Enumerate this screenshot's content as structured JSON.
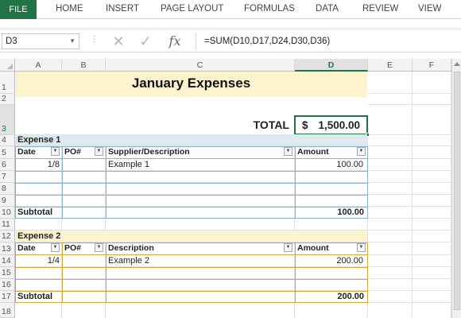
{
  "ribbon": {
    "file_label": "FILE",
    "tabs": [
      "HOME",
      "INSERT",
      "PAGE LAYOUT",
      "FORMULAS",
      "DATA",
      "REVIEW",
      "VIEW"
    ]
  },
  "formula_bar": {
    "name_box": "D3",
    "fx_label": "fx",
    "formula": "=SUM(D10,D17,D24,D30,D36)"
  },
  "columns": [
    "A",
    "B",
    "C",
    "D",
    "E",
    "F"
  ],
  "active_column": "D",
  "rows": [
    "1",
    "2",
    "3",
    "4",
    "5",
    "6",
    "7",
    "8",
    "9",
    "10",
    "11",
    "12",
    "13",
    "14",
    "15",
    "16",
    "17",
    "18"
  ],
  "active_row": "3",
  "sheet": {
    "title": "January Expenses",
    "total_label": "TOTAL",
    "total_currency": "$",
    "total_value": "1,500.00",
    "expense1": {
      "title": "Expense 1",
      "headers": [
        "Date",
        "PO#",
        "Supplier/Description",
        "Amount"
      ],
      "row": {
        "date": "1/8",
        "po": "",
        "desc": "Example 1",
        "amount": "100.00"
      },
      "subtotal_label": "Subtotal",
      "subtotal_value": "100.00"
    },
    "expense2": {
      "title": "Expense 2",
      "headers": [
        "Date",
        "PO#",
        "Description",
        "Amount"
      ],
      "row": {
        "date": "1/4",
        "po": "",
        "desc": "Example 2",
        "amount": "200.00"
      },
      "subtotal_label": "Subtotal",
      "subtotal_value": "200.00"
    }
  },
  "colors": {
    "excel_green": "#217346",
    "title_band": "#fdf3cf",
    "expense1_band": "#dde9ef",
    "expense1_lines": "#8fb1c3",
    "expense2_band": "#fdf3cf",
    "expense2_lines": "#c9ad3c"
  }
}
